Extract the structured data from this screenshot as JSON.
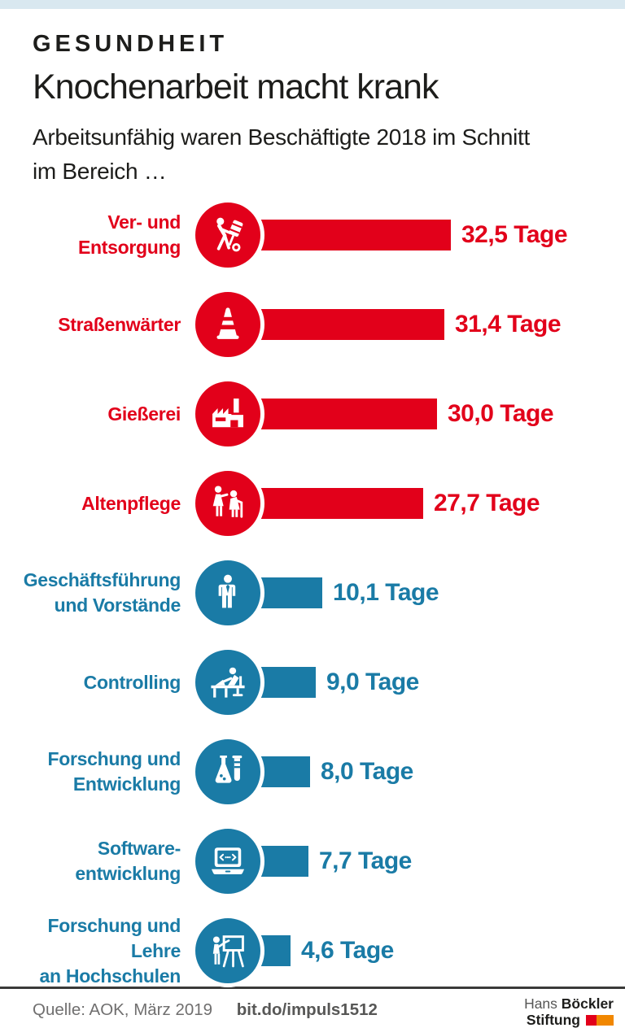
{
  "page": {
    "kicker": "GESUNDHEIT",
    "title": "Knochenarbeit macht krank",
    "subtitle_line1": "Arbeitsunfähig waren Beschäftigte 2018 im Schnitt",
    "subtitle_line2": "im Bereich …"
  },
  "chart_data": {
    "type": "bar",
    "orientation": "horizontal",
    "unit": "Tage",
    "categories": [
      [
        "Ver- und",
        "Entsorgung"
      ],
      [
        "Straßenwärter"
      ],
      [
        "Gießerei"
      ],
      [
        "Altenpflege"
      ],
      [
        "Geschäftsführung",
        "und Vorstände"
      ],
      [
        "Controlling"
      ],
      [
        "Forschung und",
        "Entwicklung"
      ],
      [
        "Software-",
        "entwicklung"
      ],
      [
        "Forschung und Lehre",
        "an Hochschulen"
      ]
    ],
    "values": [
      32.5,
      31.4,
      30.0,
      27.7,
      10.1,
      9.0,
      8.0,
      7.7,
      4.6
    ],
    "value_labels": [
      "32,5 Tage",
      "31,4 Tage",
      "30,0 Tage",
      "27,7 Tage",
      "10,1 Tage",
      "9,0 Tage",
      "8,0 Tage",
      "7,7 Tage",
      "4,6 Tage"
    ],
    "groups": [
      "red",
      "red",
      "red",
      "red",
      "blue",
      "blue",
      "blue",
      "blue",
      "blue"
    ],
    "icons": [
      "hand-truck",
      "traffic-cone",
      "factory",
      "elderly-care",
      "businessman",
      "desk-worker",
      "laboratory",
      "laptop-code",
      "teacher-board"
    ],
    "colors": {
      "red": "#e2001a",
      "blue": "#1a7ba6"
    },
    "legend": "none",
    "grid": false,
    "xlim": [
      0,
      32.5
    ]
  },
  "theme": {
    "top_strip_color": "#d9e8f0",
    "text_color": "#1d1d1b",
    "rule_color": "#3a3a39",
    "logo_red": "#e2001a",
    "logo_orange": "#f18700"
  },
  "footer": {
    "source": "Quelle: AOK, März 2019",
    "link": "bit.do/impuls1512",
    "logo": {
      "name_regular": "Hans",
      "name_bold": "Böckler",
      "line2_bold": "Stiftung"
    }
  }
}
